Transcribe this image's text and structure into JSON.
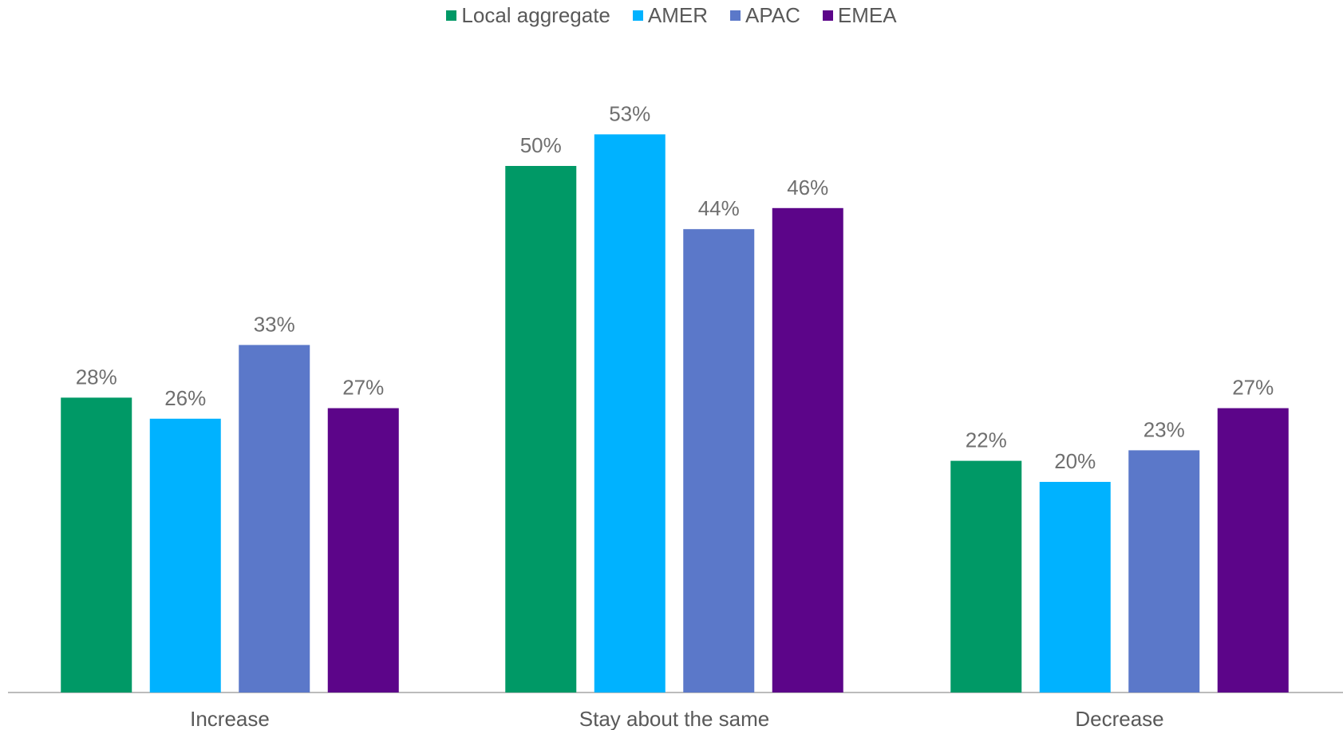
{
  "chart_data": {
    "type": "bar",
    "categories": [
      "Increase",
      "Stay about the same",
      "Decrease"
    ],
    "series": [
      {
        "name": "Local aggregate",
        "color": "#009966",
        "values": [
          28,
          50,
          22
        ],
        "labels": [
          "28%",
          "50%",
          "22%"
        ]
      },
      {
        "name": "AMER",
        "color": "#00B2FF",
        "values": [
          26,
          53,
          20
        ],
        "labels": [
          "26%",
          "53%",
          "20%"
        ]
      },
      {
        "name": "APAC",
        "color": "#5B78C9",
        "values": [
          33,
          44,
          23
        ],
        "labels": [
          "33%",
          "44%",
          "23%"
        ]
      },
      {
        "name": "EMEA",
        "color": "#5C0589",
        "values": [
          27,
          46,
          27
        ],
        "labels": [
          "27%",
          "46%",
          "27%"
        ]
      }
    ],
    "title": "",
    "xlabel": "",
    "ylabel": "",
    "ylim": [
      0,
      60
    ],
    "grid": false,
    "legend_position": "top-center"
  }
}
